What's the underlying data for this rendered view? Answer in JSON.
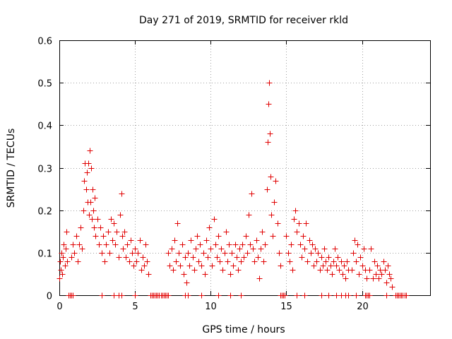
{
  "chart_data": {
    "type": "scatter",
    "title": "Day 271 of 2019, SRMTID for receiver rkld",
    "xlabel": "GPS time / hours",
    "ylabel": "SRMTID / TECUs",
    "xlim": [
      0,
      24.5
    ],
    "ylim": [
      0,
      0.6
    ],
    "x_ticks": [
      0,
      5,
      10,
      15,
      20
    ],
    "x_tick_labels": [
      "0",
      "5",
      "10",
      "15",
      "20"
    ],
    "y_ticks": [
      0,
      0.1,
      0.2,
      0.3,
      0.4,
      0.5,
      0.6
    ],
    "y_tick_labels": [
      "0",
      "0.1",
      "0.2",
      "0.3",
      "0.4",
      "0.5",
      "0.6"
    ],
    "grid": true,
    "marker": "+",
    "color": "#e00000",
    "series": [
      {
        "name": "SRMTID",
        "points": [
          [
            0.0,
            0.04
          ],
          [
            0.05,
            0.08
          ],
          [
            0.1,
            0.06
          ],
          [
            0.15,
            0.1
          ],
          [
            0.2,
            0.05
          ],
          [
            0.25,
            0.09
          ],
          [
            0.3,
            0.12
          ],
          [
            0.35,
            0.07
          ],
          [
            0.4,
            0.11
          ],
          [
            0.45,
            0.15
          ],
          [
            0.5,
            0.08
          ],
          [
            0.6,
            0.0
          ],
          [
            0.7,
            0.0
          ],
          [
            0.8,
            0.0
          ],
          [
            0.9,
            0.0
          ],
          [
            0.8,
            0.09
          ],
          [
            0.9,
            0.12
          ],
          [
            1.0,
            0.1
          ],
          [
            1.1,
            0.14
          ],
          [
            1.2,
            0.08
          ],
          [
            1.3,
            0.12
          ],
          [
            1.4,
            0.16
          ],
          [
            1.5,
            0.11
          ],
          [
            1.6,
            0.2
          ],
          [
            1.65,
            0.27
          ],
          [
            1.7,
            0.31
          ],
          [
            1.75,
            0.25
          ],
          [
            1.8,
            0.29
          ],
          [
            1.85,
            0.22
          ],
          [
            1.9,
            0.31
          ],
          [
            1.95,
            0.19
          ],
          [
            2.0,
            0.34
          ],
          [
            2.05,
            0.22
          ],
          [
            2.1,
            0.3
          ],
          [
            2.15,
            0.18
          ],
          [
            2.2,
            0.25
          ],
          [
            2.25,
            0.2
          ],
          [
            2.3,
            0.16
          ],
          [
            2.35,
            0.23
          ],
          [
            2.4,
            0.14
          ],
          [
            2.5,
            0.18
          ],
          [
            2.6,
            0.12
          ],
          [
            2.7,
            0.16
          ],
          [
            2.8,
            0.1
          ],
          [
            2.9,
            0.14
          ],
          [
            3.0,
            0.08
          ],
          [
            3.1,
            0.12
          ],
          [
            3.2,
            0.15
          ],
          [
            3.3,
            0.1
          ],
          [
            3.4,
            0.18
          ],
          [
            3.5,
            0.13
          ],
          [
            3.6,
            0.17
          ],
          [
            3.7,
            0.12
          ],
          [
            3.8,
            0.15
          ],
          [
            3.9,
            0.09
          ],
          [
            4.0,
            0.19
          ],
          [
            4.1,
            0.24
          ],
          [
            4.15,
            0.14
          ],
          [
            4.2,
            0.11
          ],
          [
            4.3,
            0.15
          ],
          [
            4.4,
            0.09
          ],
          [
            4.5,
            0.12
          ],
          [
            4.6,
            0.08
          ],
          [
            4.7,
            0.13
          ],
          [
            4.8,
            0.1
          ],
          [
            4.9,
            0.07
          ],
          [
            5.0,
            0.11
          ],
          [
            5.1,
            0.08
          ],
          [
            5.2,
            0.1
          ],
          [
            5.3,
            0.13
          ],
          [
            5.4,
            0.06
          ],
          [
            5.5,
            0.09
          ],
          [
            5.6,
            0.07
          ],
          [
            5.7,
            0.12
          ],
          [
            5.8,
            0.08
          ],
          [
            5.9,
            0.05
          ],
          [
            2.8,
            0.0
          ],
          [
            3.6,
            0.0
          ],
          [
            3.9,
            0.0
          ],
          [
            4.1,
            0.0
          ],
          [
            5.0,
            0.0
          ],
          [
            6.0,
            0.0
          ],
          [
            6.1,
            0.0
          ],
          [
            6.2,
            0.0
          ],
          [
            6.3,
            0.0
          ],
          [
            6.4,
            0.0
          ],
          [
            6.5,
            0.0
          ],
          [
            6.6,
            0.0
          ],
          [
            6.7,
            0.0
          ],
          [
            6.8,
            0.0
          ],
          [
            6.9,
            0.0
          ],
          [
            7.0,
            0.0
          ],
          [
            7.1,
            0.0
          ],
          [
            7.2,
            0.0
          ],
          [
            7.2,
            0.1
          ],
          [
            7.3,
            0.07
          ],
          [
            7.4,
            0.11
          ],
          [
            7.5,
            0.06
          ],
          [
            7.6,
            0.13
          ],
          [
            7.7,
            0.08
          ],
          [
            7.8,
            0.17
          ],
          [
            7.9,
            0.1
          ],
          [
            8.0,
            0.07
          ],
          [
            8.1,
            0.12
          ],
          [
            8.2,
            0.05
          ],
          [
            8.3,
            0.09
          ],
          [
            8.4,
            0.03
          ],
          [
            8.5,
            0.1
          ],
          [
            8.6,
            0.07
          ],
          [
            8.7,
            0.13
          ],
          [
            8.8,
            0.09
          ],
          [
            8.9,
            0.06
          ],
          [
            9.0,
            0.11
          ],
          [
            9.1,
            0.14
          ],
          [
            9.2,
            0.08
          ],
          [
            9.3,
            0.12
          ],
          [
            9.4,
            0.07
          ],
          [
            9.5,
            0.1
          ],
          [
            9.6,
            0.05
          ],
          [
            9.7,
            0.13
          ],
          [
            9.8,
            0.09
          ],
          [
            9.9,
            0.16
          ],
          [
            10.0,
            0.11
          ],
          [
            10.1,
            0.07
          ],
          [
            10.2,
            0.18
          ],
          [
            10.3,
            0.12
          ],
          [
            10.4,
            0.09
          ],
          [
            10.5,
            0.14
          ],
          [
            10.6,
            0.08
          ],
          [
            10.7,
            0.11
          ],
          [
            10.8,
            0.06
          ],
          [
            10.9,
            0.1
          ],
          [
            11.0,
            0.15
          ],
          [
            11.1,
            0.08
          ],
          [
            11.2,
            0.12
          ],
          [
            11.3,
            0.05
          ],
          [
            11.4,
            0.1
          ],
          [
            11.5,
            0.07
          ],
          [
            11.6,
            0.12
          ],
          [
            11.7,
            0.09
          ],
          [
            11.8,
            0.06
          ],
          [
            11.9,
            0.11
          ],
          [
            12.0,
            0.08
          ],
          [
            12.1,
            0.12
          ],
          [
            12.2,
            0.09
          ],
          [
            12.3,
            0.14
          ],
          [
            12.4,
            0.1
          ],
          [
            12.5,
            0.19
          ],
          [
            12.6,
            0.12
          ],
          [
            12.7,
            0.24
          ],
          [
            12.8,
            0.11
          ],
          [
            12.9,
            0.08
          ],
          [
            13.0,
            0.13
          ],
          [
            13.1,
            0.09
          ],
          [
            13.2,
            0.04
          ],
          [
            13.3,
            0.11
          ],
          [
            13.4,
            0.15
          ],
          [
            13.5,
            0.08
          ],
          [
            13.6,
            0.12
          ],
          [
            13.7,
            0.25
          ],
          [
            13.75,
            0.36
          ],
          [
            13.8,
            0.45
          ],
          [
            13.85,
            0.5
          ],
          [
            13.9,
            0.38
          ],
          [
            13.95,
            0.28
          ],
          [
            14.0,
            0.19
          ],
          [
            14.1,
            0.14
          ],
          [
            14.2,
            0.22
          ],
          [
            14.3,
            0.27
          ],
          [
            14.4,
            0.17
          ],
          [
            14.5,
            0.1
          ],
          [
            14.6,
            0.07
          ],
          [
            8.3,
            0.0
          ],
          [
            8.5,
            0.0
          ],
          [
            9.4,
            0.0
          ],
          [
            10.5,
            0.0
          ],
          [
            11.3,
            0.0
          ],
          [
            12.0,
            0.0
          ],
          [
            14.6,
            0.0
          ],
          [
            14.7,
            0.0
          ],
          [
            14.8,
            0.0
          ],
          [
            14.9,
            0.0
          ],
          [
            15.0,
            0.14
          ],
          [
            15.1,
            0.1
          ],
          [
            15.2,
            0.08
          ],
          [
            15.3,
            0.12
          ],
          [
            15.4,
            0.06
          ],
          [
            15.5,
            0.18
          ],
          [
            15.6,
            0.2
          ],
          [
            15.7,
            0.15
          ],
          [
            15.8,
            0.17
          ],
          [
            15.9,
            0.12
          ],
          [
            16.0,
            0.09
          ],
          [
            16.1,
            0.14
          ],
          [
            16.2,
            0.11
          ],
          [
            16.3,
            0.17
          ],
          [
            16.4,
            0.08
          ],
          [
            16.5,
            0.13
          ],
          [
            16.6,
            0.1
          ],
          [
            16.7,
            0.12
          ],
          [
            16.8,
            0.07
          ],
          [
            16.9,
            0.11
          ],
          [
            17.0,
            0.08
          ],
          [
            17.1,
            0.1
          ],
          [
            17.2,
            0.06
          ],
          [
            17.3,
            0.09
          ],
          [
            17.4,
            0.07
          ],
          [
            17.5,
            0.11
          ],
          [
            17.6,
            0.08
          ],
          [
            17.7,
            0.06
          ],
          [
            17.8,
            0.09
          ],
          [
            17.9,
            0.07
          ],
          [
            18.0,
            0.05
          ],
          [
            18.1,
            0.08
          ],
          [
            18.2,
            0.11
          ],
          [
            18.3,
            0.07
          ],
          [
            18.4,
            0.09
          ],
          [
            18.5,
            0.06
          ],
          [
            18.6,
            0.08
          ],
          [
            18.7,
            0.05
          ],
          [
            18.8,
            0.07
          ],
          [
            18.9,
            0.04
          ],
          [
            19.0,
            0.08
          ],
          [
            19.1,
            0.06
          ],
          [
            15.7,
            0.0
          ],
          [
            16.2,
            0.0
          ],
          [
            17.3,
            0.0
          ],
          [
            17.8,
            0.0
          ],
          [
            18.3,
            0.0
          ],
          [
            18.6,
            0.0
          ],
          [
            18.9,
            0.0
          ],
          [
            19.1,
            0.0
          ],
          [
            19.6,
            0.0
          ],
          [
            19.3,
            0.06
          ],
          [
            19.4,
            0.1
          ],
          [
            19.5,
            0.13
          ],
          [
            19.6,
            0.08
          ],
          [
            19.7,
            0.12
          ],
          [
            19.8,
            0.05
          ],
          [
            19.9,
            0.09
          ],
          [
            20.0,
            0.07
          ],
          [
            20.1,
            0.11
          ],
          [
            20.2,
            0.06
          ],
          [
            20.3,
            0.04
          ],
          [
            20.2,
            0.0
          ],
          [
            20.3,
            0.0
          ],
          [
            20.4,
            0.0
          ],
          [
            20.5,
            0.0
          ],
          [
            20.5,
            0.06
          ],
          [
            20.6,
            0.11
          ],
          [
            20.7,
            0.04
          ],
          [
            20.8,
            0.08
          ],
          [
            20.9,
            0.05
          ],
          [
            21.0,
            0.07
          ],
          [
            21.1,
            0.04
          ],
          [
            21.2,
            0.06
          ],
          [
            21.3,
            0.05
          ],
          [
            21.4,
            0.08
          ],
          [
            21.5,
            0.06
          ],
          [
            21.6,
            0.03
          ],
          [
            21.7,
            0.07
          ],
          [
            21.8,
            0.05
          ],
          [
            21.9,
            0.04
          ],
          [
            22.0,
            0.02
          ],
          [
            21.6,
            0.0
          ],
          [
            22.2,
            0.0
          ],
          [
            22.3,
            0.0
          ],
          [
            22.4,
            0.0
          ],
          [
            22.5,
            0.0
          ],
          [
            22.6,
            0.0
          ],
          [
            22.7,
            0.0
          ],
          [
            22.8,
            0.0
          ],
          [
            22.9,
            0.0
          ]
        ]
      }
    ]
  }
}
